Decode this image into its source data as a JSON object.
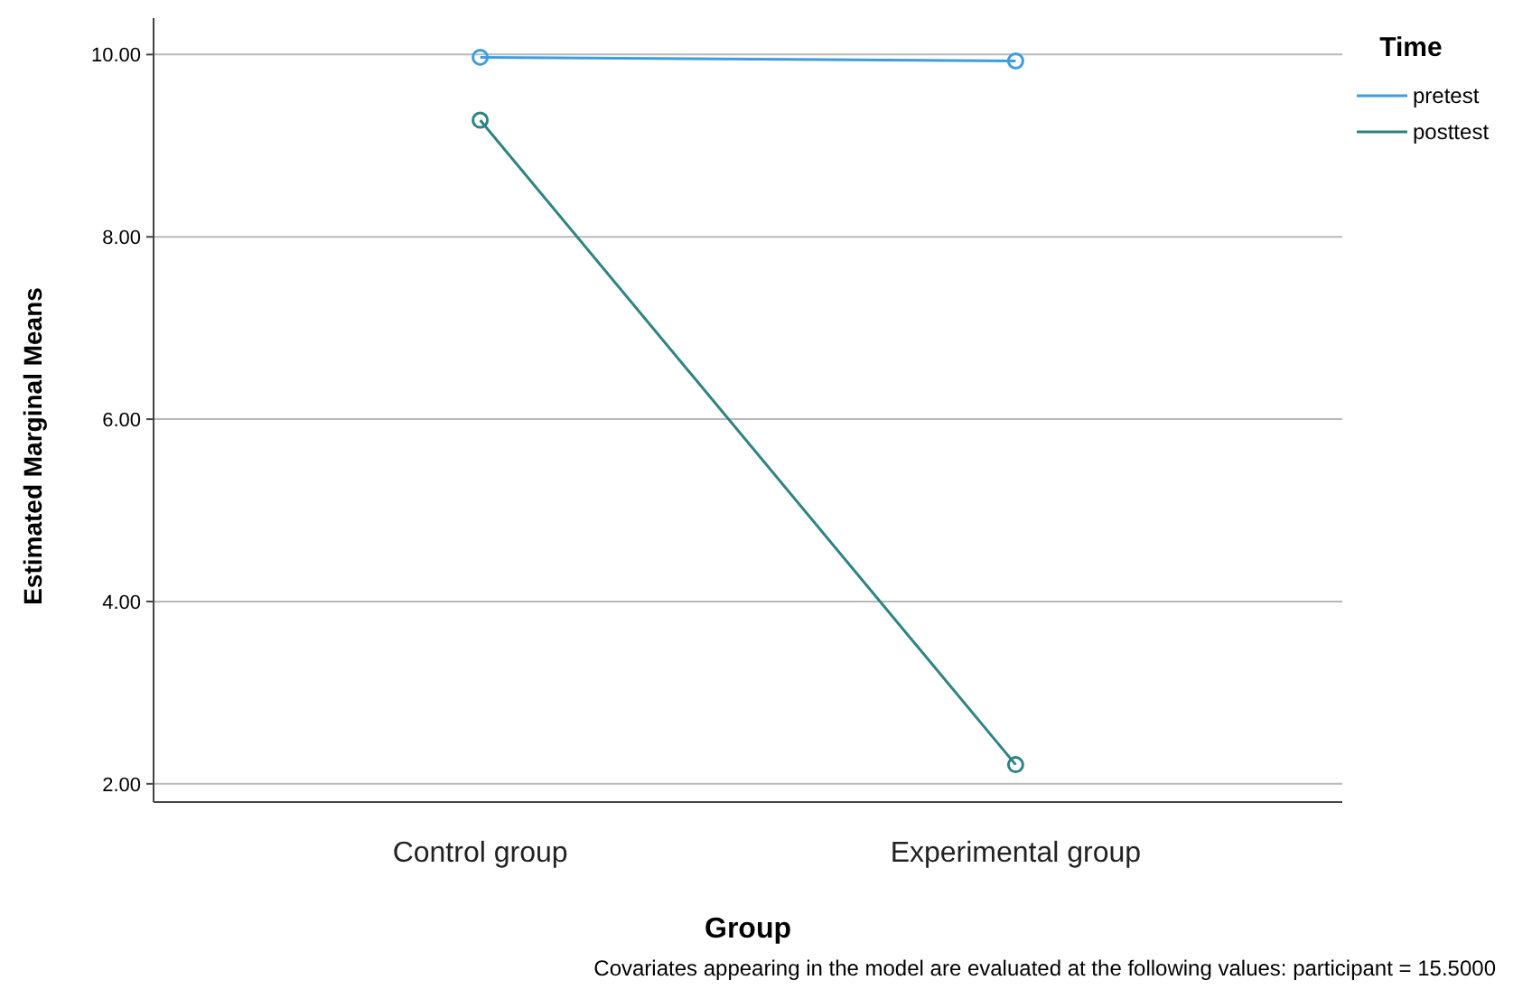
{
  "chart_data": {
    "type": "line",
    "xlabel": "Group",
    "ylabel": "Estimated Marginal Means",
    "legend_title": "Time",
    "categories": [
      "Control group",
      "Experimental group"
    ],
    "series": [
      {
        "name": "pretest",
        "color": "#3d9de0",
        "values": [
          9.97,
          9.93
        ]
      },
      {
        "name": "posttest",
        "color": "#2e8383",
        "values": [
          9.28,
          2.21
        ]
      }
    ],
    "ylim": [
      1.8,
      10.4
    ],
    "yticks": [
      {
        "value": 2,
        "label": "2.00"
      },
      {
        "value": 4,
        "label": "4.00"
      },
      {
        "value": 6,
        "label": "6.00"
      },
      {
        "value": 8,
        "label": "8.00"
      },
      {
        "value": 10,
        "label": "10.00"
      }
    ],
    "grid": "y",
    "legend": "top right",
    "marker": "circle",
    "line_style": "solid",
    "annotations": [
      "Covariates appearing in the model are evaluated at the following values: participant = 15.5000"
    ]
  }
}
